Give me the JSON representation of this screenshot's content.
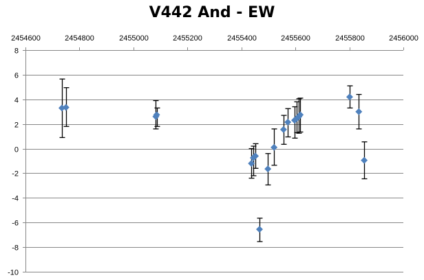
{
  "chart_data": {
    "type": "scatter",
    "title": "V442 And - EW",
    "xlabel": "",
    "ylabel": "",
    "xlim": [
      2454600,
      2456000
    ],
    "ylim": [
      -10,
      8
    ],
    "x_ticks": [
      2454600,
      2454800,
      2455000,
      2455200,
      2455400,
      2455600,
      2455800,
      2456000
    ],
    "y_ticks": [
      8,
      6,
      4,
      2,
      0,
      -2,
      -4,
      -6,
      -8,
      -10
    ],
    "x_axis_position": "top",
    "grid": {
      "horizontal": true,
      "vertical": false
    },
    "legend": null,
    "marker": "diamond",
    "marker_color": "#4F81BD",
    "series": [
      {
        "name": "EW",
        "points": [
          {
            "x": 2454735,
            "y": 3.3,
            "err_low": 0.9,
            "err_high": 5.65
          },
          {
            "x": 2454750,
            "y": 3.35,
            "err_low": 1.8,
            "err_high": 4.95
          },
          {
            "x": 2455083,
            "y": 2.6,
            "err_low": 1.6,
            "err_high": 3.9
          },
          {
            "x": 2455086,
            "y": 2.75,
            "err_low": 1.8,
            "err_high": 3.3
          },
          {
            "x": 2455437,
            "y": -1.2,
            "err_low": -2.4,
            "err_high": 0.0
          },
          {
            "x": 2455444,
            "y": -0.75,
            "err_low": -2.2,
            "err_high": 0.2
          },
          {
            "x": 2455452,
            "y": -0.6,
            "err_low": -1.6,
            "err_high": 0.4
          },
          {
            "x": 2455467,
            "y": -6.55,
            "err_low": -7.55,
            "err_high": -5.65
          },
          {
            "x": 2455498,
            "y": -1.65,
            "err_low": -2.95,
            "err_high": -0.4
          },
          {
            "x": 2455521,
            "y": 0.1,
            "err_low": -1.35,
            "err_high": 1.6
          },
          {
            "x": 2455556,
            "y": 1.55,
            "err_low": 0.35,
            "err_high": 2.7
          },
          {
            "x": 2455572,
            "y": 2.15,
            "err_low": 0.95,
            "err_high": 3.25
          },
          {
            "x": 2455597,
            "y": 2.3,
            "err_low": 0.85,
            "err_high": 3.4
          },
          {
            "x": 2455605,
            "y": 2.45,
            "err_low": 1.3,
            "err_high": 3.8
          },
          {
            "x": 2455613,
            "y": 2.6,
            "err_low": 1.25,
            "err_high": 4.05
          },
          {
            "x": 2455618,
            "y": 2.75,
            "err_low": 1.35,
            "err_high": 4.1
          },
          {
            "x": 2455801,
            "y": 4.2,
            "err_low": 3.3,
            "err_high": 5.1
          },
          {
            "x": 2455835,
            "y": 3.0,
            "err_low": 1.6,
            "err_high": 4.4
          },
          {
            "x": 2455855,
            "y": -0.95,
            "err_low": -2.45,
            "err_high": 0.55
          }
        ]
      }
    ]
  },
  "colors": {
    "marker": "#4F81BD",
    "error_bar": "#000000",
    "gridline": "#868686",
    "axis": "#868686"
  }
}
